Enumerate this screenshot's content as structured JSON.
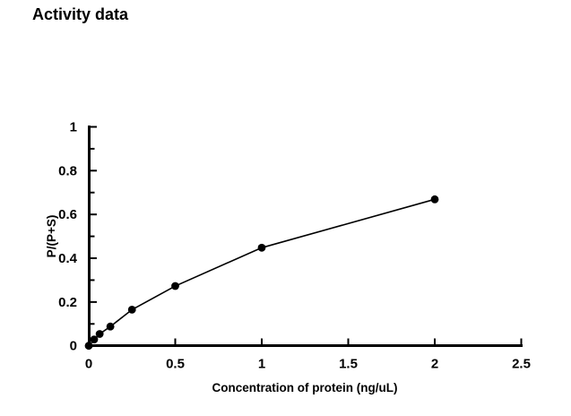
{
  "page": {
    "background_color": "#ffffff",
    "foreground_color": "#000000"
  },
  "chart_data": {
    "type": "line",
    "title": "Activity data",
    "xlabel": "Concentration of protein (ng/uL)",
    "ylabel": "P/(P+S)",
    "x": [
      0,
      0.031,
      0.063,
      0.125,
      0.25,
      0.5,
      1,
      2
    ],
    "y": [
      0,
      0.029,
      0.054,
      0.088,
      0.165,
      0.273,
      0.448,
      0.669
    ],
    "xlim": [
      0,
      2.5
    ],
    "ylim": [
      0,
      1
    ],
    "x_ticks": [
      0,
      0.5,
      1,
      1.5,
      2,
      2.5
    ],
    "x_tick_labels": [
      "0",
      "0.5",
      "1",
      "1.5",
      "2",
      "2.5"
    ],
    "y_ticks": [
      0,
      0.2,
      0.4,
      0.6,
      0.8,
      1
    ],
    "y_tick_labels": [
      "0",
      "0.2",
      "0.4",
      "0.6",
      "0.8",
      "1"
    ],
    "y_minor_ticks": [
      0.1,
      0.3,
      0.5,
      0.7,
      0.9
    ],
    "grid": false,
    "legend": "none",
    "marker": "filled-circle",
    "marker_color": "#000000",
    "line_color": "#000000",
    "axis_color": "#000000"
  }
}
